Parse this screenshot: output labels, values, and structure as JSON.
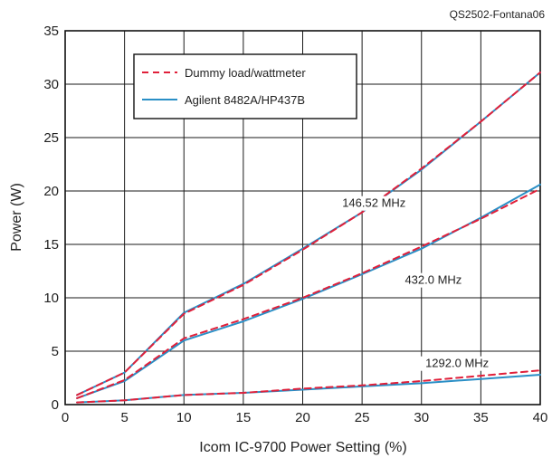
{
  "chart_data": {
    "type": "line",
    "source_tag": "QS2502-Fontana06",
    "xlabel": "Icom IC-9700 Power Setting (%)",
    "ylabel": "Power (W)",
    "xlim": [
      0,
      40
    ],
    "ylim": [
      0,
      35
    ],
    "xticks": [
      0,
      5,
      10,
      15,
      20,
      25,
      30,
      35,
      40
    ],
    "yticks": [
      0,
      5,
      10,
      15,
      20,
      25,
      30,
      35
    ],
    "grid": true,
    "legend_position": "top-left",
    "legend": [
      {
        "label": "Dummy load/wattmeter",
        "style": "dashed",
        "color": "#e0203a"
      },
      {
        "label": "Agilent 8482A/HP437B",
        "style": "solid",
        "color": "#2a8fc6"
      }
    ],
    "annotations": [
      {
        "text": "146.52 MHz",
        "x": 26,
        "y": 18.5
      },
      {
        "text": "432.0 MHz",
        "x": 31,
        "y": 11.3
      },
      {
        "text": "1292.0 MHz",
        "x": 33,
        "y": 3.5
      }
    ],
    "series": [
      {
        "group": "146.52 MHz",
        "legend_ref": 1,
        "style": "solid",
        "color": "#2a8fc6",
        "x": [
          1,
          5,
          10,
          15,
          20,
          25,
          30,
          35,
          40
        ],
        "y": [
          0.9,
          3.0,
          8.6,
          11.3,
          14.6,
          18.0,
          22.0,
          26.5,
          31.1
        ]
      },
      {
        "group": "146.52 MHz",
        "legend_ref": 0,
        "style": "dashed",
        "color": "#e0203a",
        "x": [
          1,
          5,
          10,
          15,
          20,
          25,
          30,
          35,
          40
        ],
        "y": [
          0.9,
          3.0,
          8.5,
          11.2,
          14.5,
          18.0,
          22.1,
          26.5,
          31.1
        ]
      },
      {
        "group": "432.0 MHz",
        "legend_ref": 1,
        "style": "solid",
        "color": "#2a8fc6",
        "x": [
          1,
          5,
          10,
          15,
          20,
          25,
          30,
          35,
          40
        ],
        "y": [
          0.6,
          2.2,
          6.0,
          7.8,
          9.9,
          12.2,
          14.6,
          17.5,
          20.6
        ]
      },
      {
        "group": "432.0 MHz",
        "legend_ref": 0,
        "style": "dashed",
        "color": "#e0203a",
        "x": [
          1,
          5,
          10,
          15,
          20,
          25,
          30,
          35,
          40
        ],
        "y": [
          0.6,
          2.3,
          6.2,
          8.0,
          10.0,
          12.3,
          14.8,
          17.4,
          20.2
        ]
      },
      {
        "group": "1292.0 MHz",
        "legend_ref": 1,
        "style": "solid",
        "color": "#2a8fc6",
        "x": [
          1,
          5,
          10,
          15,
          20,
          25,
          30,
          35,
          40
        ],
        "y": [
          0.2,
          0.4,
          0.9,
          1.1,
          1.4,
          1.7,
          2.0,
          2.4,
          2.8
        ]
      },
      {
        "group": "1292.0 MHz",
        "legend_ref": 0,
        "style": "dashed",
        "color": "#e0203a",
        "x": [
          1,
          5,
          10,
          15,
          20,
          25,
          30,
          35,
          40
        ],
        "y": [
          0.2,
          0.4,
          0.9,
          1.1,
          1.5,
          1.8,
          2.2,
          2.7,
          3.2
        ]
      }
    ]
  }
}
